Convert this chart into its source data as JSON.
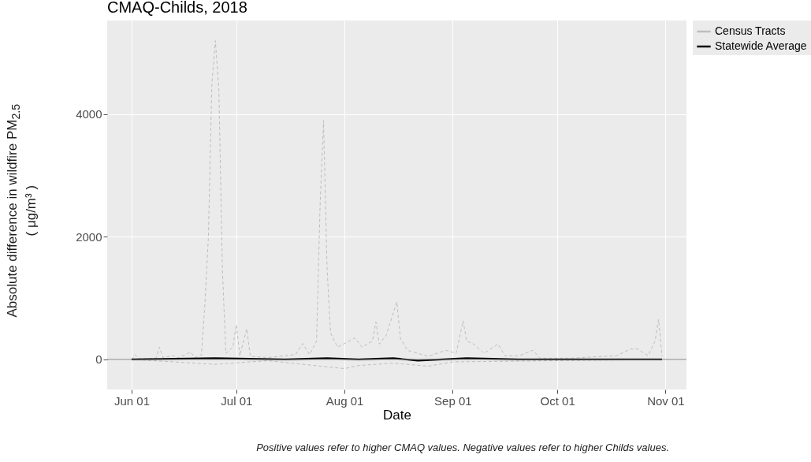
{
  "chart_data": {
    "type": "line",
    "title": "CMAQ-Childs, 2018",
    "xlabel": "Date",
    "ylabel": "Absolute difference in wildfire PM$_{2.5}$\n( μg/m³ )",
    "annotations": [
      "Positive values refer to higher CMAQ values. Negative values refer to higher Childs values."
    ],
    "xlim": [
      "2018-05-25",
      "2018-11-07"
    ],
    "xticks": [
      {
        "value": "2018-06-01",
        "label": "Jun 01"
      },
      {
        "value": "2018-07-01",
        "label": "Jul 01"
      },
      {
        "value": "2018-08-01",
        "label": "Aug 01"
      },
      {
        "value": "2018-09-01",
        "label": "Sep 01"
      },
      {
        "value": "2018-10-01",
        "label": "Oct 01"
      },
      {
        "value": "2018-11-01",
        "label": "Nov 01"
      }
    ],
    "ylim": [
      -490,
      5530
    ],
    "yticks": [
      0,
      2000,
      4000
    ],
    "grid": true,
    "legend": "right",
    "ref_lines": [
      {
        "axis": "y",
        "value": 0,
        "color": "#808080"
      }
    ],
    "series": [
      {
        "name": "Census Tracts",
        "color": "#bebebe",
        "line_style": "dashed",
        "x": [
          "2018-06-01",
          "2018-06-02",
          "2018-06-03",
          "2018-06-08",
          "2018-06-09",
          "2018-06-10",
          "2018-06-13",
          "2018-06-14",
          "2018-06-18",
          "2018-06-19",
          "2018-06-21",
          "2018-06-22",
          "2018-06-23",
          "2018-06-24",
          "2018-06-25",
          "2018-06-26",
          "2018-06-27",
          "2018-06-28",
          "2018-06-30",
          "2018-07-01",
          "2018-07-02",
          "2018-07-04",
          "2018-07-05",
          "2018-07-10",
          "2018-07-18",
          "2018-07-20",
          "2018-07-22",
          "2018-07-24",
          "2018-07-25",
          "2018-07-26",
          "2018-07-27",
          "2018-07-28",
          "2018-07-30",
          "2018-08-04",
          "2018-08-06",
          "2018-08-09",
          "2018-08-10",
          "2018-08-11",
          "2018-08-13",
          "2018-08-16",
          "2018-08-17",
          "2018-08-19",
          "2018-08-25",
          "2018-08-30",
          "2018-09-02",
          "2018-09-04",
          "2018-09-05",
          "2018-09-07",
          "2018-09-10",
          "2018-09-14",
          "2018-09-16",
          "2018-09-20",
          "2018-09-24",
          "2018-09-26",
          "2018-10-05",
          "2018-10-11",
          "2018-10-18",
          "2018-10-22",
          "2018-10-24",
          "2018-10-27",
          "2018-10-29",
          "2018-10-30",
          "2018-10-31"
        ],
        "values": [
          0,
          80,
          10,
          20,
          200,
          30,
          60,
          20,
          120,
          30,
          70,
          900,
          2000,
          4500,
          5200,
          4400,
          1500,
          100,
          200,
          570,
          60,
          500,
          50,
          30,
          80,
          260,
          80,
          300,
          2500,
          3900,
          1500,
          430,
          200,
          350,
          200,
          300,
          610,
          250,
          400,
          940,
          350,
          150,
          50,
          150,
          100,
          630,
          300,
          250,
          100,
          250,
          60,
          60,
          150,
          20,
          20,
          40,
          60,
          170,
          170,
          60,
          300,
          650,
          50
        ]
      },
      {
        "color": "#bebebe",
        "line_style": "dashed",
        "x": [
          "2018-06-01",
          "2018-06-25",
          "2018-07-10",
          "2018-07-20",
          "2018-08-01",
          "2018-08-05",
          "2018-08-15",
          "2018-08-25",
          "2018-09-01",
          "2018-10-01",
          "2018-10-31"
        ],
        "values": [
          0,
          -80,
          -20,
          -80,
          -150,
          -100,
          -60,
          -110,
          -40,
          -20,
          0
        ]
      },
      {
        "name": "Statewide Average",
        "color": "#000000",
        "line_style": "solid",
        "x": [
          "2018-06-01",
          "2018-06-25",
          "2018-07-15",
          "2018-07-27",
          "2018-08-05",
          "2018-08-15",
          "2018-08-22",
          "2018-09-05",
          "2018-09-20",
          "2018-10-01",
          "2018-10-25",
          "2018-10-31"
        ],
        "values": [
          0,
          20,
          0,
          20,
          0,
          20,
          -20,
          20,
          0,
          0,
          0,
          0
        ]
      }
    ]
  }
}
